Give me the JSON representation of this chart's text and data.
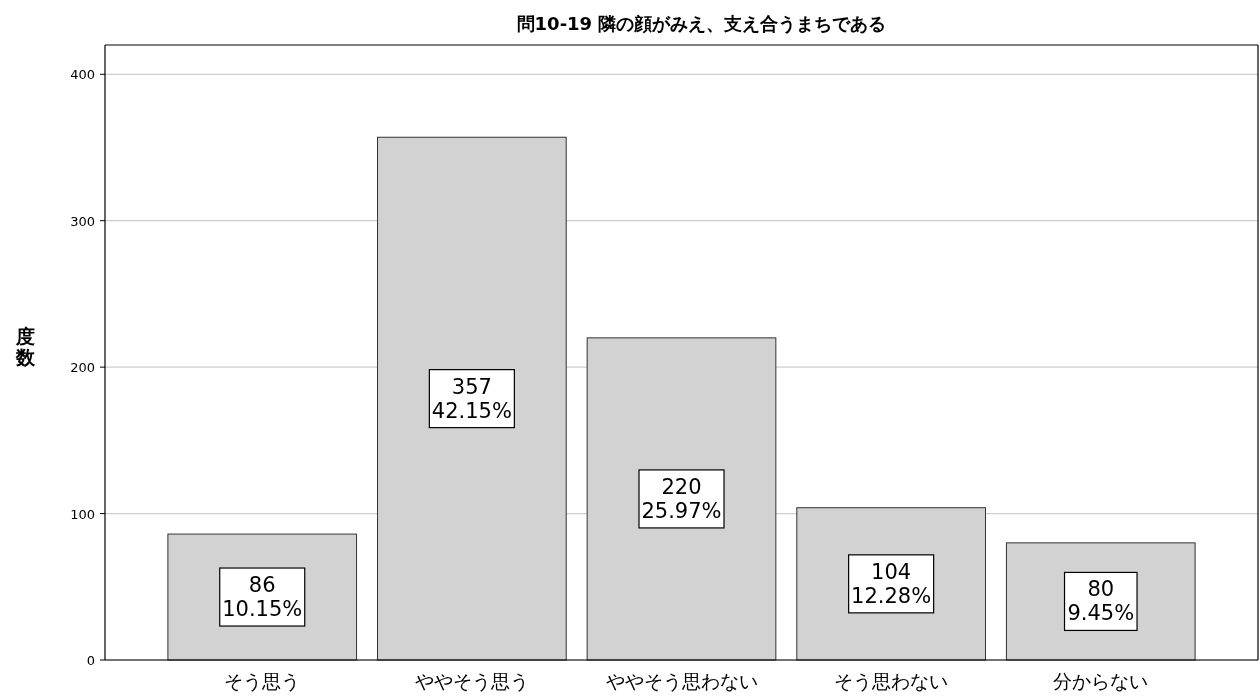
{
  "chart_data": {
    "type": "bar",
    "title": "問10-19  隣の顔がみえ、支え合うまちである",
    "ylabel": "度数",
    "categories": [
      "そう思う",
      "ややそう思う",
      "ややそう思わない",
      "そう思わない",
      "分からない"
    ],
    "values": [
      86,
      357,
      220,
      104,
      80
    ],
    "value_labels": [
      "86\n10.15%",
      "357\n42.15%",
      "220\n25.97%",
      "104\n12.28%",
      "80\n9.45%"
    ],
    "color": "#d2d2d2",
    "ylim": [
      0,
      420
    ],
    "yticks": [
      0,
      100,
      200,
      300,
      400
    ],
    "grid": "y"
  }
}
